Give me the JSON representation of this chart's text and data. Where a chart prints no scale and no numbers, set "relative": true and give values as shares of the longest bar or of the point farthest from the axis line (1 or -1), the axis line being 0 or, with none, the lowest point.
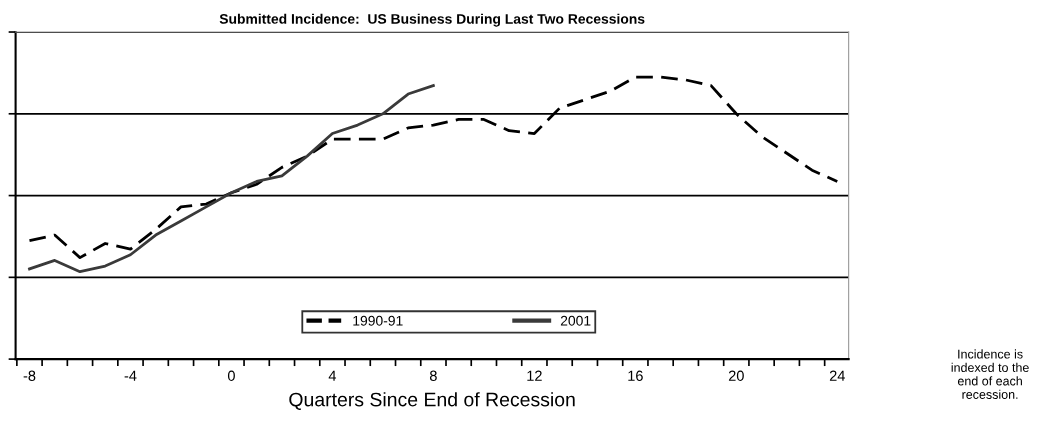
{
  "chart_data": {
    "type": "line",
    "title": "Submitted Incidence:  US Business During Last Two Recessions",
    "xlabel": "Quarters Since End of Recession",
    "relative": true,
    "tick_labels": "x",
    "grid": "y",
    "legend": "bottom",
    "marker": "none",
    "xlim": [
      -8.55,
      24.45
    ],
    "xticks": [
      -8,
      -4,
      0,
      4,
      8,
      12,
      16,
      20,
      24
    ],
    "annotations": [
      "Incidence is indexed to the end of each recession."
    ],
    "series": [
      {
        "name": "1990-91",
        "color": "#000000",
        "line_style": "dashed",
        "x": [
          -8,
          -7,
          -6,
          -5,
          -4,
          -3,
          -2,
          -1,
          0,
          1,
          2,
          3,
          4,
          5,
          6,
          7,
          8,
          9,
          10,
          11,
          12,
          13,
          14,
          15,
          16,
          17,
          18,
          19,
          20,
          21,
          22,
          23,
          24
        ],
        "values": [
          0.42,
          0.44,
          0.36,
          0.41,
          0.39,
          0.46,
          0.54,
          0.55,
          0.59,
          0.62,
          0.68,
          0.72,
          0.78,
          0.78,
          0.78,
          0.82,
          0.83,
          0.85,
          0.85,
          0.81,
          0.8,
          0.89,
          0.92,
          0.95,
          1.0,
          1.0,
          0.99,
          0.97,
          0.87,
          0.79,
          0.73,
          0.67,
          0.63
        ]
      },
      {
        "name": "2001",
        "color": "#3a3a3a",
        "line_style": "solid",
        "x": [
          -8,
          -7,
          -6,
          -5,
          -4,
          -3,
          -2,
          -1,
          0,
          1,
          2,
          3,
          4,
          5,
          6,
          7,
          8
        ],
        "values": [
          0.32,
          0.35,
          0.31,
          0.33,
          0.37,
          0.44,
          0.49,
          0.54,
          0.59,
          0.63,
          0.65,
          0.72,
          0.8,
          0.83,
          0.87,
          0.94,
          0.97
        ]
      }
    ]
  }
}
